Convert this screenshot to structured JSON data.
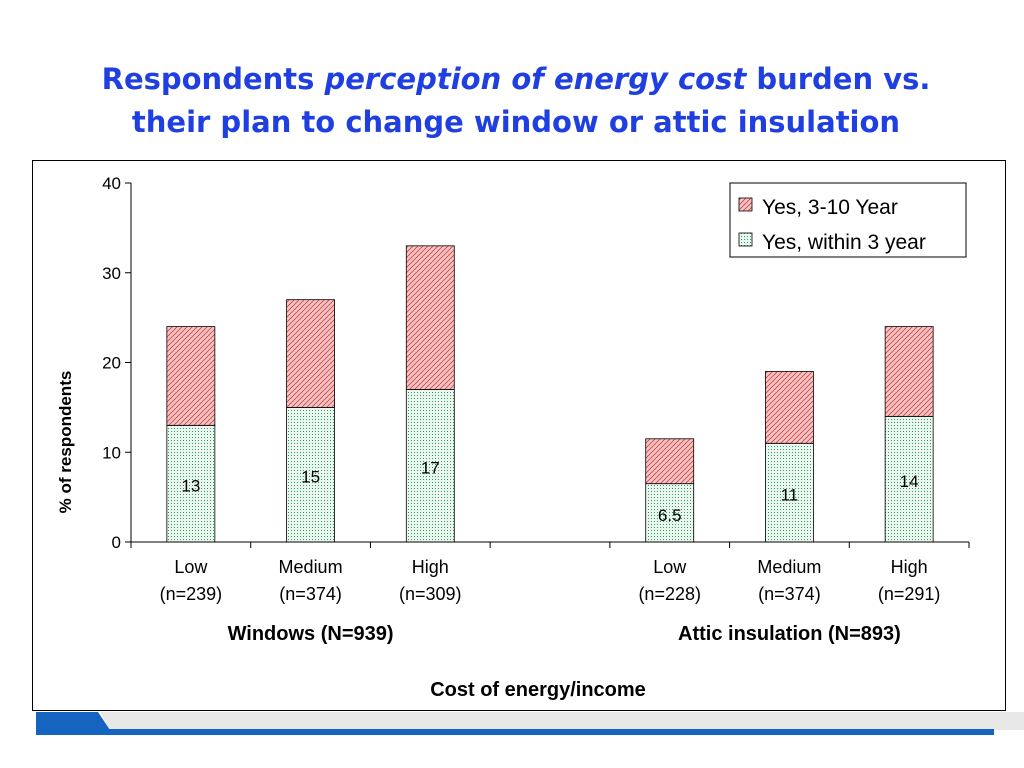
{
  "slide": {
    "title_part1": "Respondents ",
    "title_part2": "perception of energy cost",
    "title_part3": " burden  vs.",
    "title_line2": "their plan to change window or attic insulation"
  },
  "colors": {
    "title": "#1f3fe0",
    "series_long": "#f2a6a6",
    "series_long_hatch": "#c0392b",
    "series_short": "#d8f0e2",
    "series_short_dots": "#2e8b57",
    "footer_blue": "#1565c0"
  },
  "chart_data": {
    "type": "bar",
    "stacked": true,
    "ylabel": "% of respondents",
    "xlabel": "Cost of energy/income",
    "ylim": [
      0,
      40
    ],
    "yticks": [
      0,
      10,
      20,
      30,
      40
    ],
    "legend_position": "top-right",
    "categories": [
      {
        "label": "Low",
        "sub": "(n=239)"
      },
      {
        "label": "Medium",
        "sub": "(n=374)"
      },
      {
        "label": "High",
        "sub": "(n=309)"
      },
      {
        "label": "",
        "sub": ""
      },
      {
        "label": "Low",
        "sub": "(n=228)"
      },
      {
        "label": "Medium",
        "sub": "(n=374)"
      },
      {
        "label": "High",
        "sub": "(n=291)"
      }
    ],
    "groups": [
      {
        "label": "Windows (N=939)"
      },
      {
        "label": "Attic insulation (N=893)"
      }
    ],
    "series": [
      {
        "name": "Yes, within 3 year",
        "values": [
          13,
          15,
          17,
          null,
          6.5,
          11,
          14
        ],
        "labels": [
          "13",
          "15",
          "17",
          "",
          "6.5",
          "11",
          "14"
        ]
      },
      {
        "name": "Yes, 3-10 Year",
        "values": [
          11,
          12,
          16,
          null,
          5,
          8,
          10
        ]
      }
    ]
  }
}
